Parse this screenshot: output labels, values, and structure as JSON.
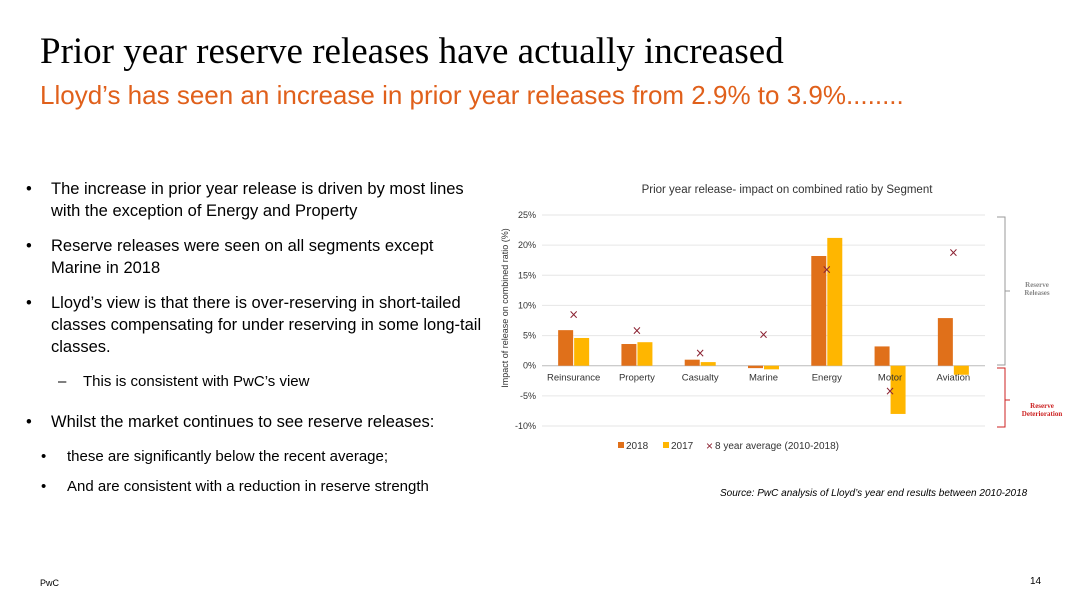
{
  "slide": {
    "title": "Prior year reserve releases have actually increased",
    "subtitle": "Lloyd’s has seen an increase in prior year releases from 2.9% to 3.9%........",
    "bullets": [
      "The increase in prior year release is driven by most lines with the exception of Energy and Property",
      "Reserve releases were seen on all segments except Marine in 2018",
      "Lloyd’s view is that there is over-reserving in short-tailed classes compensating for under reserving in some long-tail classes.",
      "This is consistent with PwC’s view",
      "Whilst the market continues to see reserve releases:",
      "these are significantly below the recent average;",
      "And are consistent with a reduction in reserve strength"
    ],
    "bullet_marks": {
      "main": "•",
      "dash": "–"
    },
    "source": "Source: PwC analysis of Lloyd’s year end results between 2010-2018",
    "footer_left": "PwC",
    "page_number": "14"
  },
  "chart_data": {
    "type": "bar",
    "title": "Prior year release- impact on combined ratio by Segment",
    "ylabel": "Impact of release on combined ratio (%)",
    "ylim": [
      -10,
      25
    ],
    "yticks": [
      "25%",
      "20%",
      "15%",
      "10%",
      "5%",
      "0%",
      "-5%",
      "-10%"
    ],
    "ytick_values": [
      25,
      20,
      15,
      10,
      5,
      0,
      -5,
      -10
    ],
    "grid": true,
    "categories": [
      "Reinsurance",
      "Property",
      "Casualty",
      "Marine",
      "Energy",
      "Motor",
      "Aviation"
    ],
    "series": [
      {
        "name": "2018",
        "values": [
          5.9,
          3.6,
          1.0,
          -0.4,
          18.2,
          3.2,
          7.9
        ],
        "color": "#E0701A"
      },
      {
        "name": "2017",
        "values": [
          4.6,
          3.9,
          0.6,
          -0.6,
          21.2,
          -8.0,
          -1.5
        ],
        "color": "#FFB600"
      },
      {
        "name": "8 year average (2010-2018)",
        "values": [
          8.5,
          5.8,
          2.1,
          5.2,
          16.0,
          -4.2,
          18.8
        ],
        "marker": "×",
        "color": "#8B2232"
      }
    ],
    "legend_position": "bottom",
    "annotations": [
      {
        "label": "Reserve Releases",
        "color": "#888888"
      },
      {
        "label": "Reserve Deterioration",
        "color": "#CC2222"
      }
    ]
  }
}
